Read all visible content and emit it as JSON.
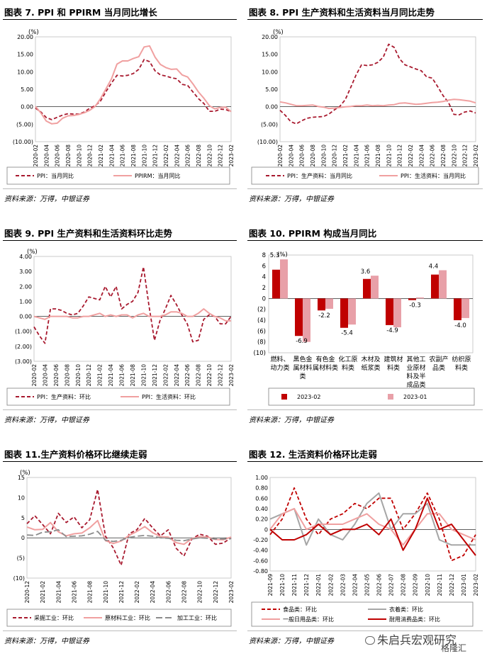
{
  "panels": [
    {
      "title": "图表 7.   PPI 和 PPIRM 当月同比增长",
      "source": "资料来源：万得，中银证券"
    },
    {
      "title": "图表 8. PPI 生产资料和生活资料当月同比走势",
      "source": "资料来源：万得，中银证券"
    },
    {
      "title": "图表 9.   PPI 生产资料和生活资料环比走势",
      "source": "资料来源：万得，中银证券"
    },
    {
      "title": "图表 10. PPIRM 构成当月同比",
      "source": "资料来源：万得，中银证券"
    },
    {
      "title": "图表 11.生产资料价格环比继续走弱",
      "source": "资料来源：万得，中银证券"
    },
    {
      "title": "图表 12.   生活资料价格环比走弱",
      "source": "资料来源：万得，中银证券"
    }
  ],
  "watermark": {
    "text": "朱启兵宏观研究",
    "sub": "格隆汇"
  },
  "chart_data": [
    {
      "type": "line",
      "unit": "(%)",
      "ylim": [
        -10,
        20
      ],
      "yticks": [
        -10,
        -5,
        0,
        5,
        10,
        15,
        20
      ],
      "yticklabels": [
        "(10.00)",
        "(5.00)",
        "0.00",
        "5.00",
        "10.00",
        "15.00",
        "20.00"
      ],
      "xlabels": [
        "2020-02",
        "2020-04",
        "2020-06",
        "2020-08",
        "2020-10",
        "2020-12",
        "2021-02",
        "2021-04",
        "2021-06",
        "2021-08",
        "2021-10",
        "2021-12",
        "2022-02",
        "2022-04",
        "2022-06",
        "2022-08",
        "2022-10",
        "2022-12",
        "2023-02"
      ],
      "colors": {
        "a": "#a8192e",
        "b": "#f0a0a0"
      },
      "series": [
        {
          "name": "PPI：当月同比",
          "style": "dash",
          "color": "#a8192e",
          "values": [
            -0.4,
            -1.5,
            -3.1,
            -3.7,
            -3.0,
            -2.4,
            -2.0,
            -2.1,
            -2.1,
            -1.5,
            -0.4,
            0.3,
            1.7,
            4.4,
            6.8,
            9.0,
            8.8,
            9.0,
            9.5,
            10.7,
            13.5,
            12.9,
            10.3,
            9.1,
            8.8,
            8.3,
            8.0,
            6.4,
            6.1,
            4.2,
            2.3,
            0.9,
            -1.3,
            -1.3,
            -0.7,
            -0.8,
            -1.4
          ]
        },
        {
          "name": "PPIRM：当月同比",
          "style": "solid",
          "color": "#f0a0a0",
          "values": [
            0.1,
            -1.8,
            -4.1,
            -4.9,
            -4.7,
            -3.3,
            -2.6,
            -2.5,
            -2.2,
            -1.7,
            -1.0,
            0.1,
            2.4,
            5.2,
            8.0,
            12.2,
            13.1,
            13.1,
            13.8,
            14.3,
            17.1,
            17.4,
            14.2,
            12.1,
            11.2,
            10.7,
            10.8,
            9.1,
            8.5,
            6.5,
            4.2,
            2.4,
            0.3,
            -0.6,
            -0.2,
            -0.1,
            -1.4
          ]
        }
      ]
    },
    {
      "type": "line",
      "unit": "(%)",
      "ylim": [
        -10,
        20
      ],
      "yticks": [
        -10,
        -5,
        0,
        5,
        10,
        15,
        20
      ],
      "yticklabels": [
        "(10.00)",
        "(5.00)",
        "0.00",
        "5.00",
        "10.00",
        "15.00",
        "20.00"
      ],
      "xlabels": [
        "2020-02",
        "2020-04",
        "2020-06",
        "2020-08",
        "2020-10",
        "2020-12",
        "2021-02",
        "2021-04",
        "2021-06",
        "2021-08",
        "2021-10",
        "2021-12",
        "2022-02",
        "2022-04",
        "2022-06",
        "2022-08",
        "2022-10",
        "2022-12",
        "2023-02"
      ],
      "series": [
        {
          "name": "PPI：生产资料：当月同比",
          "style": "dash",
          "color": "#a8192e",
          "values": [
            -1.0,
            -2.5,
            -4.3,
            -4.9,
            -4.0,
            -3.3,
            -3.0,
            -2.9,
            -2.8,
            -2.1,
            -0.9,
            0.1,
            2.0,
            5.5,
            9.1,
            12.0,
            11.8,
            12.0,
            12.7,
            14.2,
            17.9,
            17.0,
            13.7,
            12.0,
            11.4,
            10.8,
            10.3,
            8.5,
            8.2,
            5.8,
            3.2,
            1.2,
            -2.2,
            -2.3,
            -1.5,
            -1.2,
            -1.8
          ]
        },
        {
          "name": "PPI：生活资料：当月同比",
          "style": "solid",
          "color": "#f0a0a0",
          "values": [
            1.4,
            1.1,
            0.7,
            0.3,
            0.3,
            0.4,
            0.5,
            0.1,
            -0.1,
            -0.5,
            -0.4,
            -0.2,
            0.0,
            0.1,
            0.3,
            0.3,
            0.5,
            0.3,
            0.4,
            0.3,
            0.5,
            0.6,
            1.0,
            1.1,
            0.9,
            0.7,
            0.8,
            1.0,
            1.2,
            1.3,
            1.5,
            1.9,
            2.1,
            2.0,
            1.8,
            1.6,
            1.1
          ]
        }
      ]
    },
    {
      "type": "line",
      "unit": "(%)",
      "ylim": [
        -3,
        4
      ],
      "yticks": [
        -3,
        -2,
        -1,
        0,
        1,
        2,
        3,
        4
      ],
      "yticklabels": [
        "(3.00)",
        "(2.00)",
        "(1.00)",
        "0.00",
        "1.00",
        "2.00",
        "3.00",
        "4.00"
      ],
      "xlabels": [
        "2020-02",
        "2020-04",
        "2020-06",
        "2020-08",
        "2020-10",
        "2020-12",
        "2021-02",
        "2021-04",
        "2021-06",
        "2021-08",
        "2021-10",
        "2021-12",
        "2022-02",
        "2022-04",
        "2022-06",
        "2022-08",
        "2022-10",
        "2022-12",
        "2023-02"
      ],
      "series": [
        {
          "name": "PPI：生产资料：环比",
          "style": "dash",
          "color": "#a8192e",
          "values": [
            -0.7,
            -1.3,
            -1.8,
            0.5,
            0.5,
            0.4,
            0.2,
            0.1,
            0.2,
            0.7,
            1.3,
            1.2,
            1.1,
            2.0,
            1.3,
            2.0,
            0.5,
            0.8,
            1.0,
            1.6,
            3.3,
            0.7,
            -1.6,
            -0.3,
            0.5,
            1.4,
            0.8,
            0.1,
            -0.5,
            -1.7,
            -1.6,
            -0.2,
            0.1,
            0.0,
            -0.5,
            -0.5,
            0.0
          ]
        },
        {
          "name": "PPI：生活资料：环比",
          "style": "solid",
          "color": "#f0a0a0",
          "values": [
            0.0,
            -0.1,
            -0.2,
            0.0,
            0.0,
            0.0,
            0.0,
            -0.1,
            -0.1,
            0.0,
            0.0,
            0.1,
            0.2,
            0.0,
            0.1,
            0.0,
            0.1,
            0.1,
            -0.1,
            0.1,
            0.2,
            0.0,
            0.0,
            0.0,
            0.1,
            0.3,
            0.3,
            0.2,
            0.0,
            0.0,
            0.2,
            0.5,
            0.2,
            0.0,
            -0.1,
            -0.3,
            -0.3
          ]
        }
      ]
    },
    {
      "type": "bar",
      "unit": "(%)",
      "ylim": [
        -10,
        8
      ],
      "yticks": [
        -10,
        -8,
        -6,
        -4,
        -2,
        0,
        2,
        4,
        6,
        8
      ],
      "yticklabels": [
        "(10)",
        "(8)",
        "(6)",
        "(4)",
        "(2)",
        "0",
        "2",
        "4",
        "6",
        "8"
      ],
      "categories": [
        [
          "燃料、",
          "动力类"
        ],
        [
          "黑色金",
          "属材料",
          "类"
        ],
        [
          "有色金",
          "属材料类"
        ],
        [
          "化工原",
          "料类"
        ],
        [
          "木材及",
          "纸浆类"
        ],
        [
          "建筑材",
          "料类"
        ],
        [
          "其他工",
          "业原材",
          "料及半",
          "成品类"
        ],
        [
          "农副产",
          "品类"
        ],
        [
          "纺织原",
          "料类"
        ]
      ],
      "series": [
        {
          "name": "2023-02",
          "color": "#c00000",
          "values": [
            5.3,
            -6.9,
            -2.2,
            -5.4,
            3.6,
            -4.9,
            -0.3,
            4.4,
            -4.0
          ]
        },
        {
          "name": "2023-01",
          "color": "#e8a0a8",
          "values": [
            7.2,
            -8.0,
            -1.9,
            -4.8,
            4.2,
            -5.3,
            0.2,
            5.2,
            -3.6
          ]
        }
      ],
      "data_labels": [
        "5.3",
        "-6.9",
        "-2.2",
        "-5.4",
        "3.6",
        "-4.9",
        "-0.3",
        "4.4",
        "-4.0"
      ]
    },
    {
      "type": "line",
      "unit": "(%)",
      "ylim": [
        -10,
        15
      ],
      "yticks": [
        -10,
        -5,
        0,
        5,
        10,
        15
      ],
      "yticklabels": [
        "(10)",
        "(5)",
        "0",
        "5",
        "10",
        "15"
      ],
      "xlabels": [
        "2020-12",
        "2021-02",
        "2021-04",
        "2021-06",
        "2021-08",
        "2021-10",
        "2021-12",
        "2022-02",
        "2022-04",
        "2022-06",
        "2022-08",
        "2022-10",
        "2022-12",
        "2023-02"
      ],
      "series": [
        {
          "name": "采掘工业：环比",
          "style": "dash",
          "color": "#a8192e",
          "values": [
            3.5,
            5.5,
            3.3,
            1.0,
            6.1,
            3.8,
            5.2,
            2.5,
            4.5,
            12.0,
            0.4,
            -2.5,
            -6.8,
            1.0,
            2.0,
            4.8,
            2.5,
            0.5,
            2.0,
            -2.6,
            -4.5,
            -0.3,
            0.9,
            0.4,
            -1.6,
            -1.3,
            0.0
          ]
        },
        {
          "name": "原材料工业：环比",
          "style": "solid",
          "color": "#f0a0a0",
          "values": [
            2.7,
            2.0,
            2.1,
            3.8,
            1.5,
            0.5,
            1.0,
            1.2,
            2.5,
            4.3,
            -0.7,
            -1.4,
            -0.8,
            0.6,
            1.6,
            2.8,
            1.3,
            0.3,
            0.2,
            -1.2,
            -1.6,
            -0.2,
            0.3,
            0.2,
            -0.4,
            -0.5,
            0.2
          ]
        },
        {
          "name": "加工工业：环比",
          "style": "longdash",
          "color": "#8c8c8c",
          "values": [
            0.7,
            0.6,
            1.4,
            1.5,
            2.0,
            0.3,
            0.4,
            0.5,
            0.9,
            1.6,
            -0.6,
            -0.9,
            -0.6,
            0.1,
            0.4,
            0.6,
            0.4,
            0.0,
            -0.1,
            -0.6,
            -0.7,
            -0.3,
            0.0,
            -0.1,
            -0.3,
            -0.3,
            -0.2
          ]
        }
      ]
    },
    {
      "type": "line",
      "ylim": [
        -0.8,
        1.0
      ],
      "yticks": [
        -0.8,
        -0.6,
        -0.4,
        -0.2,
        0,
        0.2,
        0.4,
        0.6,
        0.8,
        1.0
      ],
      "yticklabels": [
        "-0.80",
        "-0.60",
        "-0.40",
        "-0.20",
        "0",
        "0.20",
        "0.40",
        "0.60",
        "0.80",
        "1.00"
      ],
      "xlabels": [
        "2021-09",
        "2021-10",
        "2021-11",
        "2021-12",
        "2022-01",
        "2022-02",
        "2022-03",
        "2022-04",
        "2022-05",
        "2022-06",
        "2022-07",
        "2022-08",
        "2022-09",
        "2022-10",
        "2022-11",
        "2022-12",
        "2023-01",
        "2023-02"
      ],
      "series": [
        {
          "name": "食品类：环比",
          "style": "dash",
          "color": "#c00000",
          "values": [
            -0.1,
            0.2,
            0.8,
            0.2,
            -0.1,
            0.2,
            0.3,
            0.5,
            0.4,
            0.6,
            0.6,
            0.0,
            0.3,
            0.7,
            0.2,
            -0.6,
            -0.5,
            -0.1
          ]
        },
        {
          "name": "衣着类：环比",
          "style": "solid",
          "color": "#a6a6a6",
          "values": [
            0.2,
            0.3,
            0.4,
            -0.3,
            0.2,
            -0.1,
            -0.2,
            0.1,
            0.5,
            0.7,
            0.0,
            0.3,
            0.3,
            0.5,
            -0.2,
            -0.3,
            -0.3,
            -0.3
          ]
        },
        {
          "name": "一般日用品类：环比",
          "style": "solid",
          "color": "#f0a0a0",
          "values": [
            0.0,
            0.3,
            0.4,
            0.0,
            0.1,
            0.1,
            0.1,
            0.2,
            0.3,
            0.1,
            0.0,
            -0.3,
            0.0,
            0.3,
            0.3,
            0.0,
            -0.1,
            -0.2
          ]
        },
        {
          "name": "耐用消费品类：环比",
          "style": "solid",
          "color": "#c00000",
          "values": [
            0.0,
            -0.2,
            -0.2,
            -0.1,
            0.1,
            -0.1,
            0.0,
            0.0,
            0.1,
            -0.1,
            0.2,
            -0.4,
            0.0,
            0.6,
            0.0,
            0.1,
            -0.2,
            -0.5
          ]
        }
      ]
    }
  ]
}
